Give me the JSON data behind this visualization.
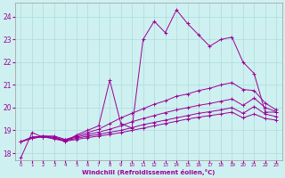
{
  "xlabel": "Windchill (Refroidissement éolien,°C)",
  "background_color": "#cff0f0",
  "line_color": "#990099",
  "grid_color": "#b0e0e0",
  "xlim": [
    -0.5,
    23.5
  ],
  "ylim": [
    17.7,
    24.6
  ],
  "yticks": [
    18,
    19,
    20,
    21,
    22,
    23,
    24
  ],
  "xticks": [
    0,
    1,
    2,
    3,
    4,
    5,
    6,
    7,
    8,
    9,
    10,
    11,
    12,
    13,
    14,
    15,
    16,
    17,
    18,
    19,
    20,
    21,
    22,
    23
  ],
  "series": [
    [
      17.8,
      18.9,
      18.7,
      18.7,
      18.5,
      18.8,
      19.0,
      19.2,
      21.2,
      19.3,
      19.1,
      23.0,
      23.8,
      23.3,
      24.3,
      23.7,
      23.2,
      22.7,
      23.0,
      23.1,
      22.0,
      21.5,
      19.8,
      19.8
    ],
    [
      18.5,
      18.7,
      18.75,
      18.75,
      18.6,
      18.75,
      18.9,
      19.05,
      19.3,
      19.55,
      19.75,
      19.95,
      20.15,
      20.3,
      20.5,
      20.6,
      20.75,
      20.85,
      21.0,
      21.1,
      20.8,
      20.75,
      20.2,
      19.9
    ],
    [
      18.5,
      18.7,
      18.75,
      18.7,
      18.58,
      18.7,
      18.82,
      18.92,
      19.05,
      19.2,
      19.38,
      19.52,
      19.65,
      19.78,
      19.9,
      20.0,
      20.1,
      20.18,
      20.28,
      20.38,
      20.1,
      20.42,
      20.0,
      19.82
    ],
    [
      18.5,
      18.65,
      18.72,
      18.65,
      18.55,
      18.65,
      18.75,
      18.82,
      18.92,
      19.0,
      19.12,
      19.25,
      19.35,
      19.45,
      19.55,
      19.65,
      19.75,
      19.82,
      19.9,
      20.0,
      19.75,
      20.05,
      19.72,
      19.6
    ],
    [
      18.5,
      18.65,
      18.72,
      18.62,
      18.52,
      18.6,
      18.68,
      18.75,
      18.82,
      18.9,
      19.0,
      19.1,
      19.2,
      19.3,
      19.4,
      19.5,
      19.58,
      19.65,
      19.72,
      19.8,
      19.55,
      19.72,
      19.52,
      19.45
    ]
  ]
}
